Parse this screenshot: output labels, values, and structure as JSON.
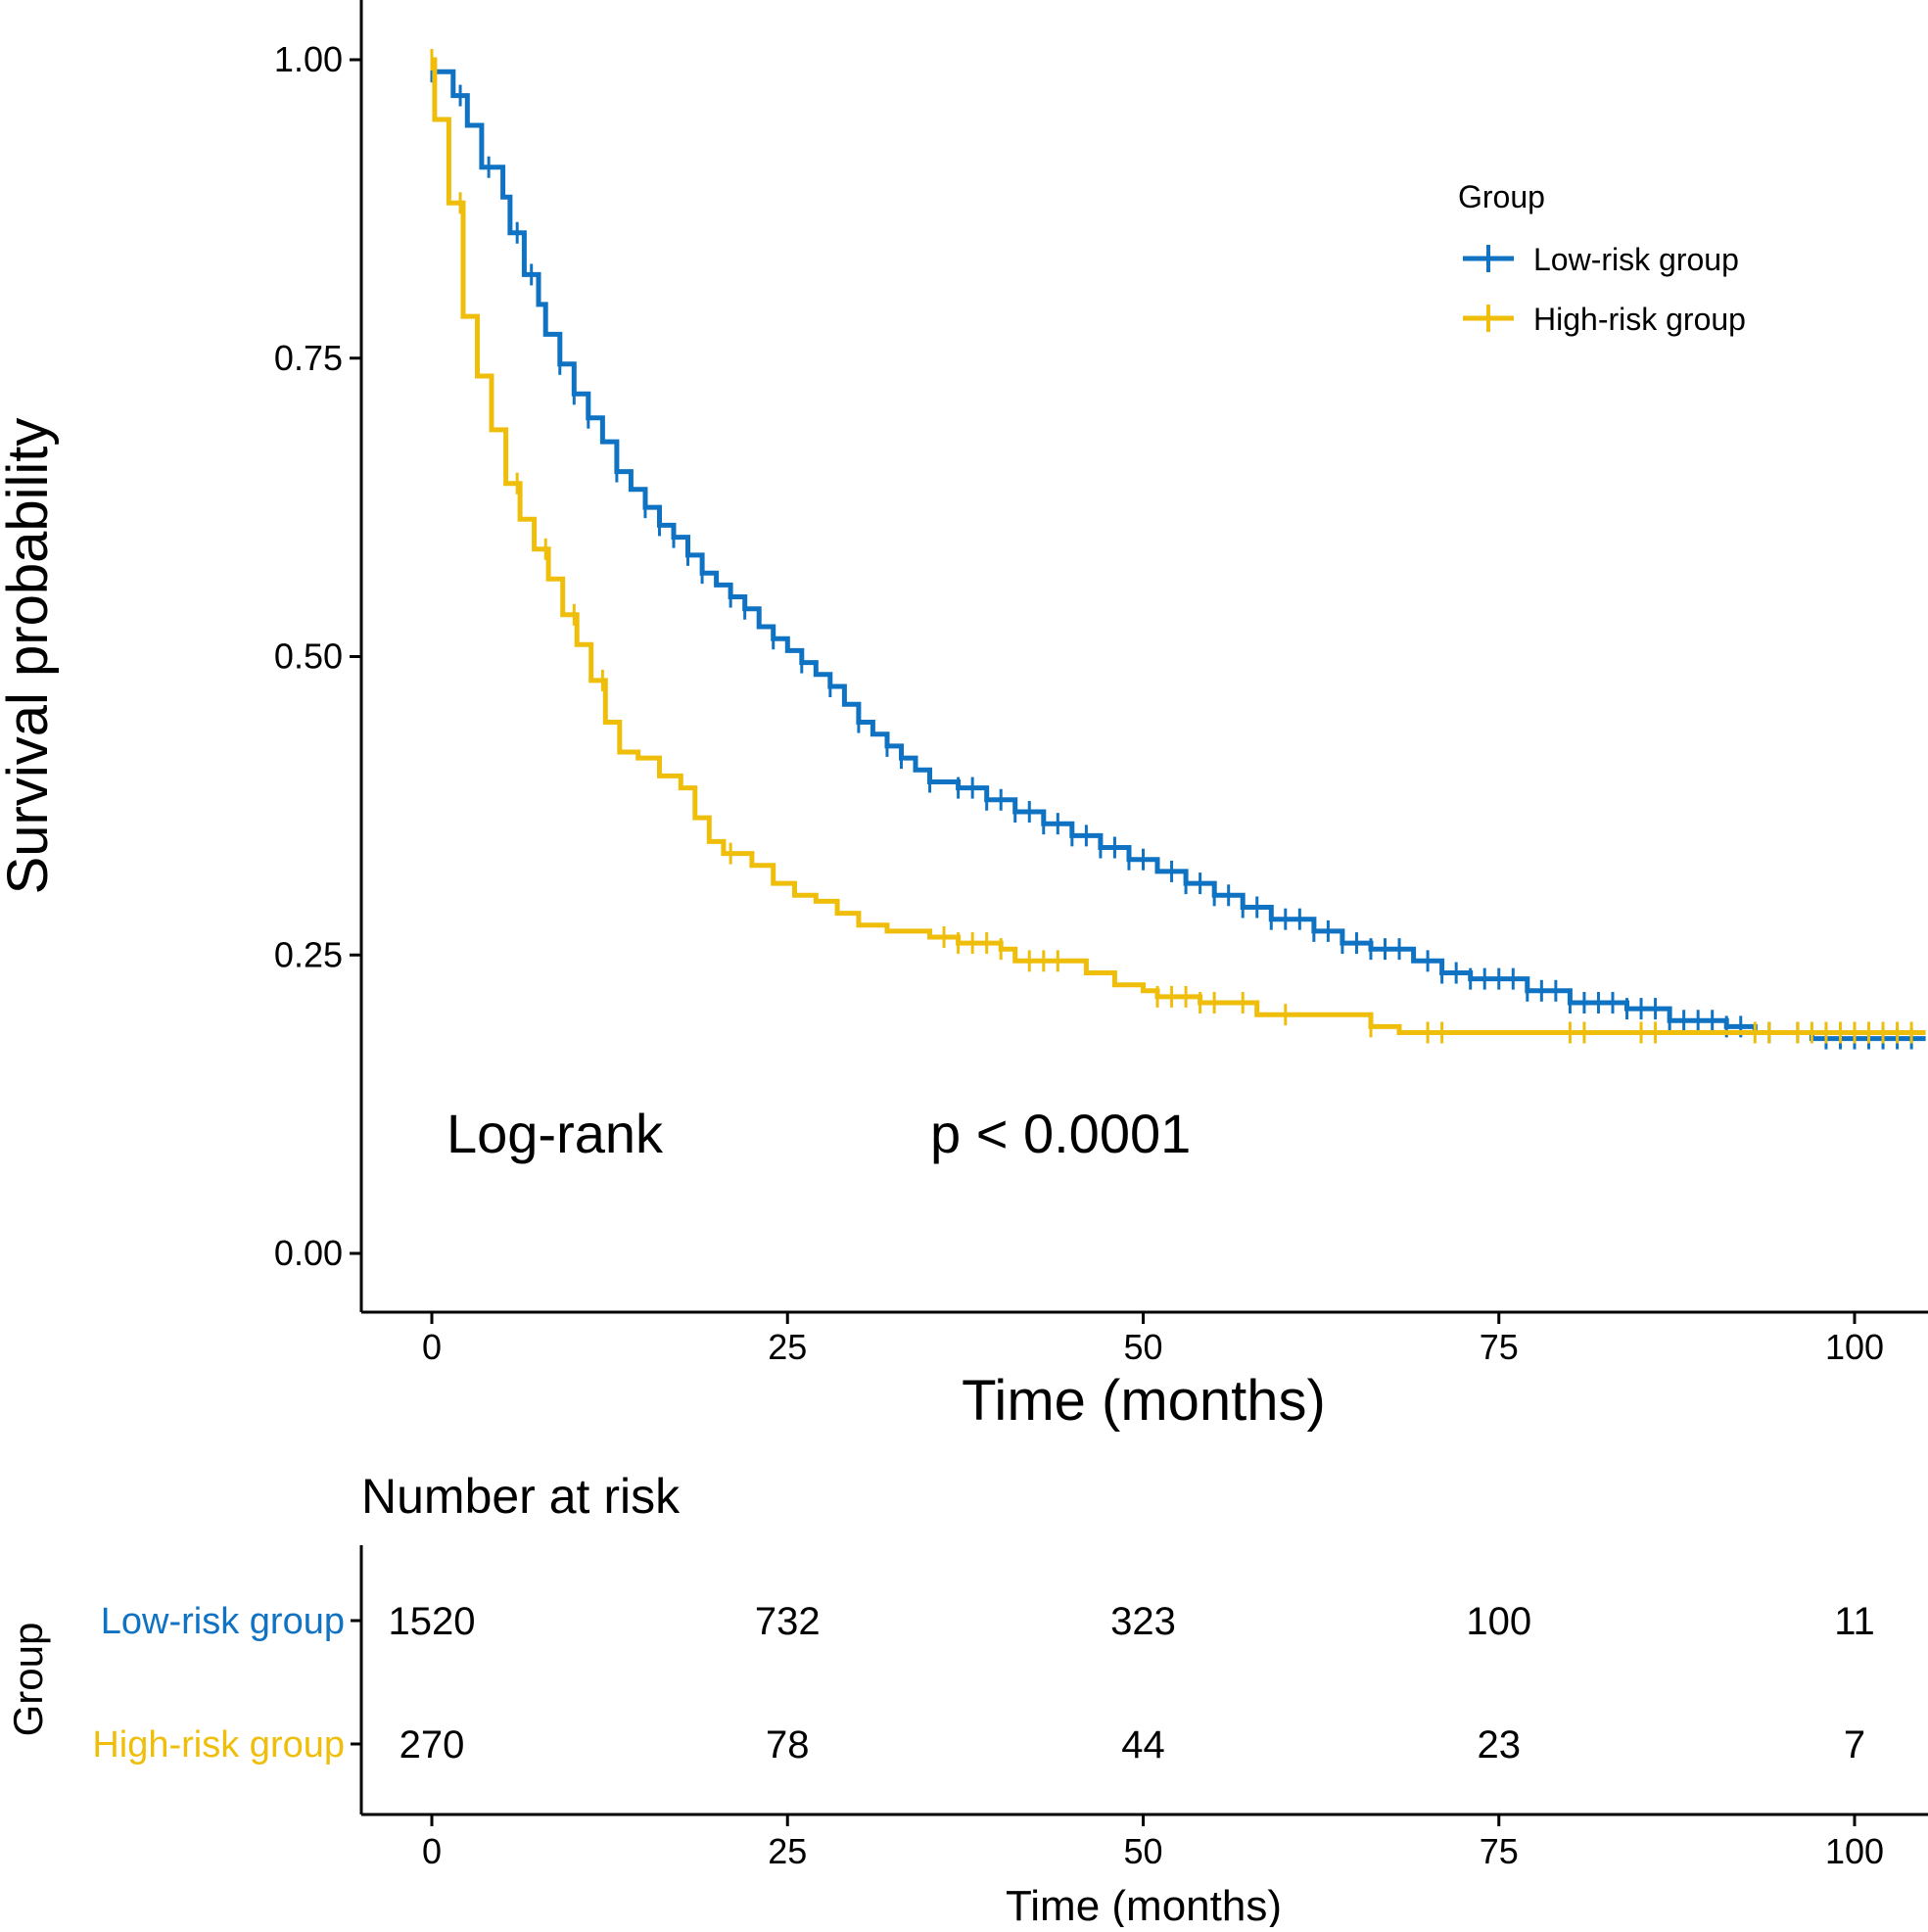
{
  "chart_data": {
    "type": "line",
    "subtype": "kaplan-meier",
    "ylabel": "Survival probability",
    "xlabel": "Time (months)",
    "ylim": [
      0,
      1
    ],
    "xlim": [
      0,
      105
    ],
    "x_ticks": [
      0,
      25,
      50,
      75,
      100
    ],
    "x_tick_labels": [
      "0",
      "25",
      "50",
      "75",
      "100"
    ],
    "y_ticks": [
      0,
      0.25,
      0.5,
      0.75,
      1.0
    ],
    "y_tick_labels": [
      "0.00",
      "0.25",
      "0.50",
      "0.75",
      "1.00"
    ],
    "grid": false,
    "legend": {
      "title": "Group",
      "placement": "top-right",
      "entries": [
        "Low-risk group",
        "High-risk group"
      ]
    },
    "annotation": {
      "test_label": "Log-rank",
      "p_value_text": "p < 0.0001"
    },
    "colors": {
      "low": "#0f72c2",
      "high": "#efbe0b"
    },
    "series": [
      {
        "name": "Low-risk group",
        "color": "#0f72c2",
        "steps": [
          [
            0,
            0.99
          ],
          [
            1.5,
            0.97
          ],
          [
            2.5,
            0.945
          ],
          [
            3.5,
            0.91
          ],
          [
            5,
            0.885
          ],
          [
            5.5,
            0.855
          ],
          [
            6.5,
            0.82
          ],
          [
            7.5,
            0.795
          ],
          [
            8,
            0.77
          ],
          [
            9,
            0.745
          ],
          [
            10,
            0.72
          ],
          [
            11,
            0.7
          ],
          [
            12,
            0.68
          ],
          [
            13,
            0.655
          ],
          [
            14,
            0.64
          ],
          [
            15,
            0.625
          ],
          [
            16,
            0.61
          ],
          [
            17,
            0.6
          ],
          [
            18,
            0.585
          ],
          [
            19,
            0.57
          ],
          [
            20,
            0.56
          ],
          [
            21,
            0.55
          ],
          [
            22,
            0.54
          ],
          [
            23,
            0.525
          ],
          [
            24,
            0.515
          ],
          [
            25,
            0.505
          ],
          [
            26,
            0.495
          ],
          [
            27,
            0.485
          ],
          [
            28,
            0.475
          ],
          [
            29,
            0.46
          ],
          [
            30,
            0.445
          ],
          [
            31,
            0.435
          ],
          [
            32,
            0.425
          ],
          [
            33,
            0.415
          ],
          [
            34,
            0.405
          ],
          [
            35,
            0.395
          ],
          [
            37,
            0.39
          ],
          [
            39,
            0.38
          ],
          [
            41,
            0.37
          ],
          [
            43,
            0.36
          ],
          [
            45,
            0.35
          ],
          [
            47,
            0.34
          ],
          [
            49,
            0.33
          ],
          [
            51,
            0.32
          ],
          [
            53,
            0.31
          ],
          [
            55,
            0.3
          ],
          [
            57,
            0.29
          ],
          [
            59,
            0.28
          ],
          [
            62,
            0.27
          ],
          [
            64,
            0.26
          ],
          [
            66,
            0.255
          ],
          [
            69,
            0.245
          ],
          [
            71,
            0.235
          ],
          [
            73,
            0.23
          ],
          [
            77,
            0.22
          ],
          [
            80,
            0.21
          ],
          [
            84,
            0.205
          ],
          [
            87,
            0.195
          ],
          [
            91,
            0.19
          ],
          [
            93,
            0.185
          ],
          [
            97,
            0.18
          ],
          [
            105,
            0.18
          ]
        ],
        "censor_times": [
          0,
          2,
          4,
          6,
          7,
          9,
          10,
          11,
          13,
          15,
          16,
          17,
          18,
          19,
          21,
          22,
          24,
          26,
          28,
          30,
          32,
          33,
          35,
          37,
          38,
          39,
          40,
          41,
          42,
          43,
          44,
          45,
          46,
          47,
          48,
          49,
          50,
          52,
          53,
          54,
          55,
          56,
          57,
          58,
          59,
          60,
          61,
          62,
          63,
          64,
          65,
          66,
          67,
          68,
          70,
          71,
          72,
          73,
          74,
          75,
          76,
          77,
          78,
          79,
          80,
          81,
          82,
          83,
          84,
          85,
          86,
          87,
          88,
          89,
          90,
          91,
          92,
          94,
          96,
          98,
          99,
          100,
          101,
          102,
          103,
          104
        ]
      },
      {
        "name": "High-risk group",
        "color": "#efbe0b",
        "steps": [
          [
            0,
            1.0
          ],
          [
            0.2,
            0.95
          ],
          [
            1.2,
            0.88
          ],
          [
            2.2,
            0.785
          ],
          [
            3.2,
            0.735
          ],
          [
            4.2,
            0.69
          ],
          [
            5.2,
            0.645
          ],
          [
            6.2,
            0.615
          ],
          [
            7.2,
            0.59
          ],
          [
            8.2,
            0.565
          ],
          [
            9.2,
            0.535
          ],
          [
            10.2,
            0.51
          ],
          [
            11.2,
            0.48
          ],
          [
            12.2,
            0.445
          ],
          [
            13.2,
            0.42
          ],
          [
            14.5,
            0.415
          ],
          [
            16,
            0.4
          ],
          [
            17.5,
            0.39
          ],
          [
            18.5,
            0.365
          ],
          [
            19.5,
            0.345
          ],
          [
            20.5,
            0.335
          ],
          [
            22.5,
            0.325
          ],
          [
            24,
            0.31
          ],
          [
            25.5,
            0.3
          ],
          [
            27,
            0.295
          ],
          [
            28.5,
            0.285
          ],
          [
            30,
            0.275
          ],
          [
            32,
            0.27
          ],
          [
            35,
            0.265
          ],
          [
            37,
            0.26
          ],
          [
            40,
            0.255
          ],
          [
            41,
            0.245
          ],
          [
            46,
            0.235
          ],
          [
            48,
            0.225
          ],
          [
            50,
            0.22
          ],
          [
            51,
            0.215
          ],
          [
            54,
            0.21
          ],
          [
            58,
            0.2
          ],
          [
            66,
            0.19
          ],
          [
            68,
            0.185
          ],
          [
            105,
            0.185
          ]
        ],
        "censor_times": [
          0,
          2,
          6,
          8,
          10,
          12,
          21,
          36,
          37,
          38,
          39,
          40,
          42,
          43,
          44,
          51,
          52,
          53,
          54,
          55,
          57,
          60,
          66,
          70,
          71,
          80,
          81,
          85,
          86,
          93,
          94,
          96,
          97,
          98,
          99,
          100,
          101,
          102,
          103,
          104
        ]
      }
    ],
    "risk_table": {
      "title": "Number at risk",
      "y_title": "Group",
      "xlabel": "Time (months)",
      "times": [
        0,
        25,
        50,
        75,
        100
      ],
      "rows": [
        {
          "group": "Low-risk group",
          "counts": [
            "1520",
            "732",
            "323",
            "100",
            "11"
          ]
        },
        {
          "group": "High-risk group",
          "counts": [
            "270",
            "78",
            "44",
            "23",
            "7"
          ]
        }
      ]
    }
  }
}
